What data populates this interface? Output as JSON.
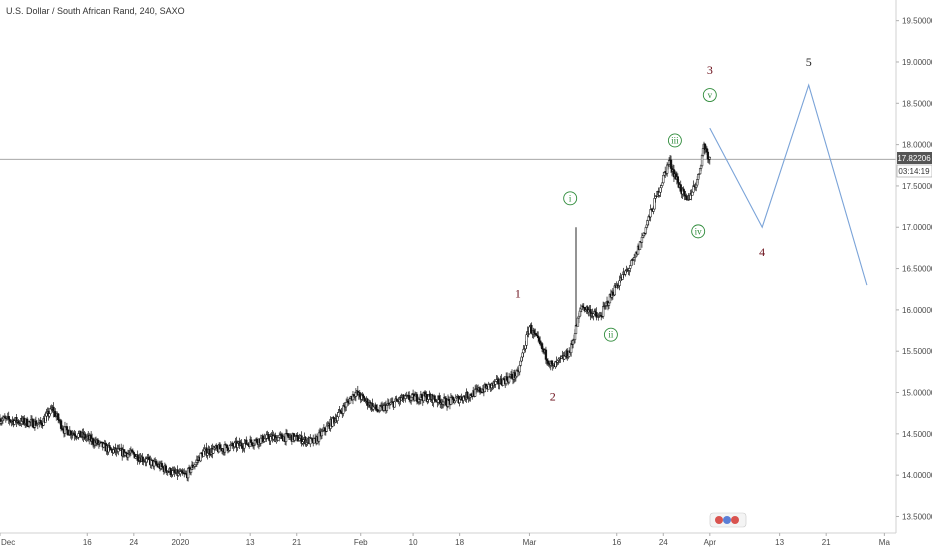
{
  "chart_data": {
    "type": "candlestick",
    "title": "U.S. Dollar / South African Rand, 240, SAXO",
    "yaxis": {
      "ticks": [
        13.5,
        14.0,
        14.5,
        15.0,
        15.5,
        16.0,
        16.5,
        17.0,
        17.5,
        18.0,
        18.5,
        19.0,
        19.5
      ],
      "tick_labels": [
        "13.50000",
        "14.00000",
        "14.50000",
        "15.00000",
        "15.50000",
        "16.00000",
        "16.50000",
        "17.00000",
        "17.50000",
        "18.00000",
        "18.50000",
        "19.00000",
        "19.50000"
      ],
      "range": [
        13.3,
        19.75
      ],
      "position": "right"
    },
    "xaxis": {
      "tick_labels": [
        "Dec",
        "16",
        "24",
        "2020",
        "13",
        "21",
        "Feb",
        "10",
        "18",
        "Mar",
        "16",
        "24",
        "Apr",
        "13",
        "21",
        "Ma"
      ],
      "range": [
        "2019-12-01",
        "2020-05-03"
      ]
    },
    "current_price": {
      "value": "17.82206",
      "countdown": "03:14:19",
      "line_value": 17.82206,
      "color": "#555555"
    },
    "price_path": [
      [
        "2019-12-01",
        14.68
      ],
      [
        "2019-12-08",
        14.62
      ],
      [
        "2019-12-10",
        14.8
      ],
      [
        "2019-12-12",
        14.55
      ],
      [
        "2019-12-16",
        14.45
      ],
      [
        "2019-12-20",
        14.3
      ],
      [
        "2019-12-24",
        14.25
      ],
      [
        "2019-12-28",
        14.12
      ],
      [
        "2019-12-31",
        14.02
      ],
      [
        "2020-01-02",
        14.0
      ],
      [
        "2020-01-05",
        14.28
      ],
      [
        "2020-01-08",
        14.32
      ],
      [
        "2020-01-12",
        14.38
      ],
      [
        "2020-01-16",
        14.45
      ],
      [
        "2020-01-20",
        14.46
      ],
      [
        "2020-01-24",
        14.4
      ],
      [
        "2020-01-28",
        14.72
      ],
      [
        "2020-01-31",
        15.0
      ],
      [
        "2020-02-04",
        14.78
      ],
      [
        "2020-02-08",
        14.92
      ],
      [
        "2020-02-12",
        14.95
      ],
      [
        "2020-02-16",
        14.88
      ],
      [
        "2020-02-20",
        14.98
      ],
      [
        "2020-02-24",
        15.1
      ],
      [
        "2020-02-28",
        15.22
      ],
      [
        "2020-03-01",
        15.8
      ],
      [
        "2020-03-05",
        15.3
      ],
      [
        "2020-03-08",
        15.5
      ],
      [
        "2020-03-10",
        16.05
      ],
      [
        "2020-03-13",
        15.9
      ],
      [
        "2020-03-16",
        16.3
      ],
      [
        "2020-03-19",
        16.6
      ],
      [
        "2020-03-23",
        17.4
      ],
      [
        "2020-03-25",
        17.8
      ],
      [
        "2020-03-28",
        17.3
      ],
      [
        "2020-03-30",
        17.6
      ],
      [
        "2020-03-31",
        18.0
      ],
      [
        "2020-04-01",
        17.82
      ]
    ],
    "wick_spikes": [
      {
        "x": "2020-03-09",
        "low": 15.8,
        "high": 17.0
      }
    ],
    "projection": {
      "color": "#7aa3d8",
      "points": [
        [
          "2020-04-01",
          18.2
        ],
        [
          "2020-04-10",
          17.0
        ],
        [
          "2020-04-18",
          18.72
        ],
        [
          "2020-04-28",
          16.3
        ]
      ]
    },
    "annotations": [
      {
        "label": "1",
        "x": "2020-02-28",
        "y": 16.2,
        "style": "wave-major"
      },
      {
        "label": "2",
        "x": "2020-03-05",
        "y": 14.95,
        "style": "wave-major"
      },
      {
        "label": "3",
        "x": "2020-04-01",
        "y": 18.9,
        "style": "wave-major"
      },
      {
        "label": "4",
        "x": "2020-04-10",
        "y": 16.7,
        "style": "wave-major"
      },
      {
        "label": "5",
        "x": "2020-04-18",
        "y": 19.0,
        "style": "wave-major-dark"
      },
      {
        "label": "i",
        "x": "2020-03-08",
        "y": 17.35,
        "style": "wave-minor"
      },
      {
        "label": "ii",
        "x": "2020-03-15",
        "y": 15.7,
        "style": "wave-minor"
      },
      {
        "label": "iii",
        "x": "2020-03-26",
        "y": 18.05,
        "style": "wave-minor"
      },
      {
        "label": "iv",
        "x": "2020-03-30",
        "y": 16.95,
        "style": "wave-minor"
      },
      {
        "label": "v",
        "x": "2020-04-01",
        "y": 18.6,
        "style": "wave-minor"
      }
    ],
    "colors": {
      "candle": "#111111",
      "axis_text": "#4a4a4a",
      "wave_major": "#6b0f1a",
      "wave_minor": "#2e8b3a",
      "grid": "none"
    }
  }
}
